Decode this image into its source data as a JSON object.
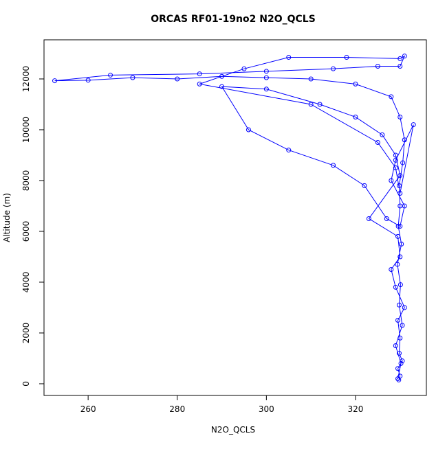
{
  "chart_data": {
    "type": "line",
    "title": "ORCAS RF01-19no2 N2O_QCLS",
    "x_label": "N2O_QCLS",
    "y_label": "Altitude (m)",
    "series": [
      {
        "name": "N2O_QCLS",
        "color": "#0000ff",
        "x": [
          329.5,
          330.2,
          329.0,
          330.5,
          329.8,
          330.1,
          329.4,
          330.3,
          329.6,
          330.0,
          329.8,
          330.6,
          331.0,
          330.0,
          328.0,
          320.0,
          310.0,
          300.0,
          290.0,
          280.0,
          270.0,
          260.0,
          252.5,
          265.0,
          285.0,
          300.0,
          315.0,
          325.0,
          330.0,
          331.0,
          330.0,
          318.0,
          305.0,
          295.0,
          285.0,
          310.0,
          325.0,
          329.0,
          330.0,
          333.0,
          329.0,
          328.0,
          331.0,
          330.0,
          327.0,
          322.0,
          315.0,
          305.0,
          296.0,
          290.0,
          300.0,
          312.0,
          320.0,
          326.0,
          329.0,
          330.0,
          323.0,
          329.5,
          330.0,
          328.0,
          329.0,
          331.0,
          329.5,
          330.0,
          329.8,
          330.5,
          329.5,
          330.0,
          329.7
        ],
        "values": [
          200,
          800,
          1500,
          2300,
          3100,
          3900,
          4700,
          5500,
          6200,
          7000,
          7800,
          8700,
          9600,
          10500,
          11300,
          11800,
          12000,
          12050,
          12100,
          12000,
          12050,
          11950,
          11930,
          12150,
          12200,
          12300,
          12400,
          12500,
          12500,
          12900,
          12800,
          12850,
          12850,
          12400,
          11800,
          11000,
          9500,
          8500,
          7500,
          10200,
          8800,
          8000,
          7000,
          6200,
          6500,
          7800,
          8600,
          9200,
          10000,
          11700,
          11600,
          11000,
          10500,
          9800,
          9000,
          8200,
          6500,
          5800,
          5000,
          4500,
          3800,
          3000,
          2500,
          1800,
          1200,
          900,
          600,
          300,
          150
        ]
      }
    ],
    "xlim": [
      250.1,
      335.9
    ],
    "ylim": [
      -460,
      13540
    ],
    "xticks": [
      260,
      280,
      300,
      320
    ],
    "yticks": [
      0,
      2000,
      4000,
      6000,
      8000,
      10000,
      12000
    ]
  }
}
